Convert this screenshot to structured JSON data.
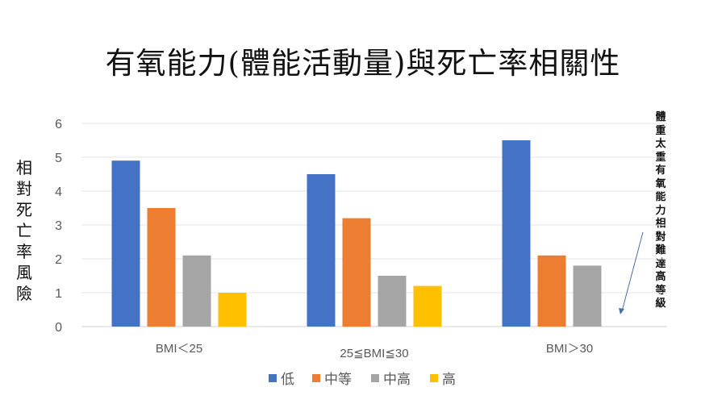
{
  "chart_data": {
    "type": "bar",
    "title": "有氧能力(體能活動量)與死亡率相關性",
    "xlabel": "",
    "ylabel": "相對死亡率風險",
    "ylim": [
      0,
      6
    ],
    "yticks": [
      "0",
      "1",
      "2",
      "3",
      "4",
      "5",
      "6"
    ],
    "grid": true,
    "legend_position": "bottom",
    "categories": [
      "BMI＜25",
      "25≦BMI≦30",
      "BMI＞30"
    ],
    "series": [
      {
        "name": "低",
        "color": "#4472C4",
        "values": [
          4.9,
          4.5,
          5.5
        ]
      },
      {
        "name": "中等",
        "color": "#ED7D31",
        "values": [
          3.5,
          3.2,
          2.1
        ]
      },
      {
        "name": "中高",
        "color": "#A5A5A5",
        "values": [
          2.1,
          1.5,
          1.8
        ]
      },
      {
        "name": "高",
        "color": "#FFC000",
        "values": [
          1.0,
          1.2,
          null
        ]
      }
    ],
    "annotation": "體重太重 有氧能力相對難達高等級"
  }
}
